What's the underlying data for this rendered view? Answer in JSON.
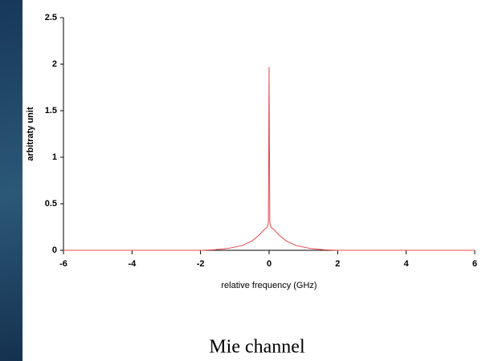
{
  "chart_data": {
    "type": "line",
    "title": "Mie channel",
    "xlabel": "relative frequency (GHz)",
    "ylabel": "arbitraty unit",
    "x": [
      -6,
      -2,
      -1.6,
      -1.2,
      -0.8,
      -0.5,
      -0.3,
      -0.15,
      -0.05,
      -0.02,
      0,
      0.02,
      0.05,
      0.15,
      0.3,
      0.5,
      0.8,
      1.2,
      1.6,
      2,
      6
    ],
    "series": [
      {
        "color": "#e8474b",
        "values": [
          0,
          0,
          0.005,
          0.02,
          0.05,
          0.1,
          0.16,
          0.22,
          0.25,
          0.3,
          1.97,
          0.3,
          0.25,
          0.22,
          0.16,
          0.1,
          0.05,
          0.02,
          0.005,
          0,
          0
        ]
      }
    ],
    "xlim": [
      -6,
      6
    ],
    "xticks": [
      -6,
      -4,
      -2,
      0,
      2,
      4,
      6
    ],
    "ylim": [
      0,
      2.5
    ],
    "yticks": [
      0,
      0.5,
      1,
      1.5,
      2,
      2.5
    ]
  }
}
